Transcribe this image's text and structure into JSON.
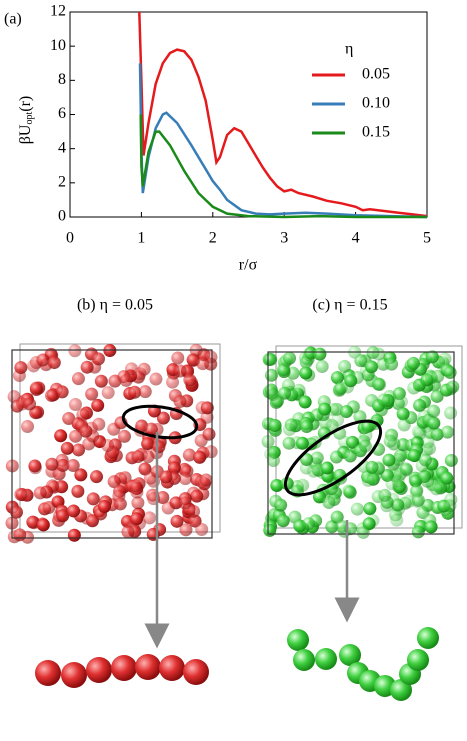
{
  "chart_data": {
    "type": "line",
    "panel_label": "(a)",
    "xlabel": "r/σ",
    "ylabel": {
      "main": "βU",
      "sub": "opt",
      "tail": "(r)"
    },
    "legend_title": "η",
    "xlim": [
      0,
      5
    ],
    "xticks": [
      0,
      1,
      2,
      3,
      4,
      5
    ],
    "ylim": [
      0,
      12
    ],
    "yticks": [
      0,
      2,
      4,
      6,
      8,
      10,
      12
    ],
    "series": [
      {
        "name": "0.05",
        "color": "#e41a1c",
        "x": [
          0.97,
          1.0,
          1.03,
          1.1,
          1.2,
          1.3,
          1.4,
          1.5,
          1.6,
          1.7,
          1.8,
          1.9,
          2.0,
          2.05,
          2.1,
          2.2,
          2.3,
          2.4,
          2.5,
          2.6,
          2.7,
          2.8,
          2.9,
          3.0,
          3.1,
          3.2,
          3.4,
          3.6,
          3.8,
          4.0,
          4.1,
          4.2,
          4.4,
          4.6,
          4.8,
          5.0
        ],
        "values": [
          12,
          8,
          3.6,
          5.5,
          7.8,
          9.0,
          9.6,
          9.8,
          9.7,
          9.2,
          8.2,
          6.8,
          4.5,
          3.2,
          3.5,
          4.8,
          5.2,
          5.0,
          4.3,
          3.6,
          2.9,
          2.3,
          1.8,
          1.5,
          1.6,
          1.4,
          1.2,
          0.95,
          0.8,
          0.6,
          0.4,
          0.45,
          0.35,
          0.25,
          0.15,
          0.05
        ]
      },
      {
        "name": "0.10",
        "color": "#377eb8",
        "x": [
          0.98,
          1.0,
          1.02,
          1.1,
          1.2,
          1.3,
          1.35,
          1.5,
          1.7,
          1.9,
          2.0,
          2.1,
          2.2,
          2.4,
          2.6,
          2.8,
          3.0,
          3.3,
          3.6,
          4.0,
          4.5,
          5.0
        ],
        "values": [
          9,
          4,
          1.4,
          3.5,
          5.2,
          6.0,
          6.1,
          5.5,
          4.2,
          2.8,
          2.1,
          1.6,
          1.0,
          0.4,
          0.2,
          0.15,
          0.2,
          0.25,
          0.2,
          0.1,
          0.05,
          0
        ]
      },
      {
        "name": "0.15",
        "color": "#1a8a1a",
        "x": [
          0.99,
          1.0,
          1.02,
          1.1,
          1.2,
          1.25,
          1.4,
          1.6,
          1.8,
          2.0,
          2.2,
          2.5,
          3.0,
          3.5,
          4.0,
          5.0
        ],
        "values": [
          6,
          3,
          1.8,
          3.8,
          5.0,
          5.0,
          4.2,
          2.7,
          1.4,
          0.6,
          0.2,
          0.05,
          0,
          0.05,
          0,
          0
        ]
      }
    ]
  },
  "panels": [
    {
      "label": "(b) η = 0.05"
    },
    {
      "label": "(c) η = 0.15"
    }
  ]
}
